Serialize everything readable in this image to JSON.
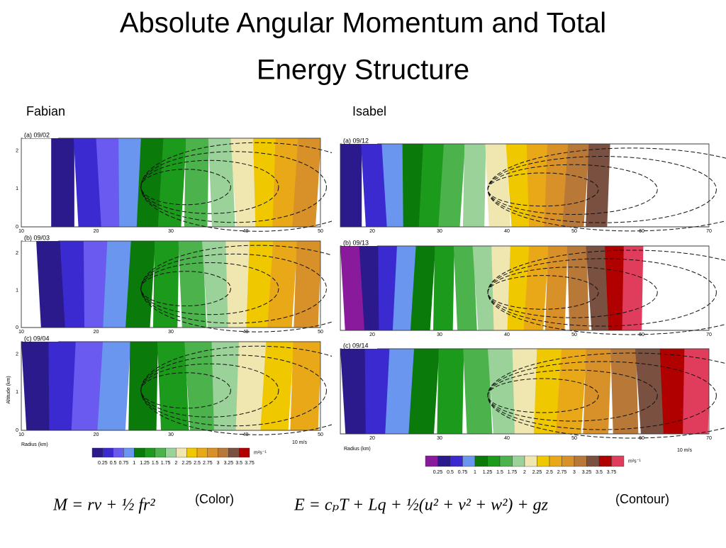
{
  "header": {
    "title_line1": "Absolute Angular Momentum and Total",
    "title_line2": "Energy Structure"
  },
  "fabian": {
    "label": "Fabian",
    "panels": [
      "(a) 09/02",
      "(b) 09/03",
      "(c) 09/04"
    ],
    "xticks": [
      "10",
      "20",
      "30",
      "40",
      "50"
    ],
    "yticks": [
      "0",
      "1",
      "2"
    ],
    "xlabel": "Radius (km)",
    "ylabel": "Altitude (km)",
    "scale": "10 m/s",
    "colorbar": {
      "colors": [
        "#2a1a8c",
        "#3a2ad0",
        "#6a5af0",
        "#6a96f0",
        "#0a7a0a",
        "#1c9a1c",
        "#4cb24c",
        "#9ad29a",
        "#f0e6b0",
        "#f0c800",
        "#e8a818",
        "#d89028",
        "#b87838",
        "#7a5040",
        "#b00000",
        "#e03c5c"
      ],
      "labels": [
        "0.25",
        "0.5",
        "0.75",
        "1",
        "1.25",
        "1.5",
        "1.75",
        "2",
        "2.25",
        "2.5",
        "2.75",
        "3",
        "3.25",
        "3.5",
        "3.75"
      ],
      "unit": "m²s⁻¹"
    }
  },
  "isabel": {
    "label": "Isabel",
    "panels": [
      "(a) 09/12",
      "(b) 09/13",
      "(c) 09/14"
    ],
    "xticks": [
      "20",
      "30",
      "40",
      "50",
      "60",
      "70"
    ],
    "xlabel": "Radius (km)",
    "scale": "10 m/s",
    "colorbar": {
      "colors": [
        "#8a1a9c",
        "#2a1a8c",
        "#3a2ad0",
        "#6a96f0",
        "#0a7a0a",
        "#1c9a1c",
        "#4cb24c",
        "#9ad29a",
        "#f0e6b0",
        "#f0c800",
        "#e8a818",
        "#d89028",
        "#b87838",
        "#7a5040",
        "#b00000",
        "#e03c5c"
      ],
      "labels": [
        "0.25",
        "0.5",
        "0.75",
        "1",
        "1.25",
        "1.5",
        "1.75",
        "2",
        "2.25",
        "2.5",
        "2.75",
        "3",
        "3.25",
        "3.5",
        "3.75"
      ],
      "unit": "m²s⁻¹"
    }
  },
  "equations": [
    {
      "formula": "M = rv + ½ fr²",
      "note": "(Color)"
    },
    {
      "formula": "E = cₚT + Lq + ½(u² + v² + w²) + gz",
      "note": "(Contour)"
    }
  ]
}
